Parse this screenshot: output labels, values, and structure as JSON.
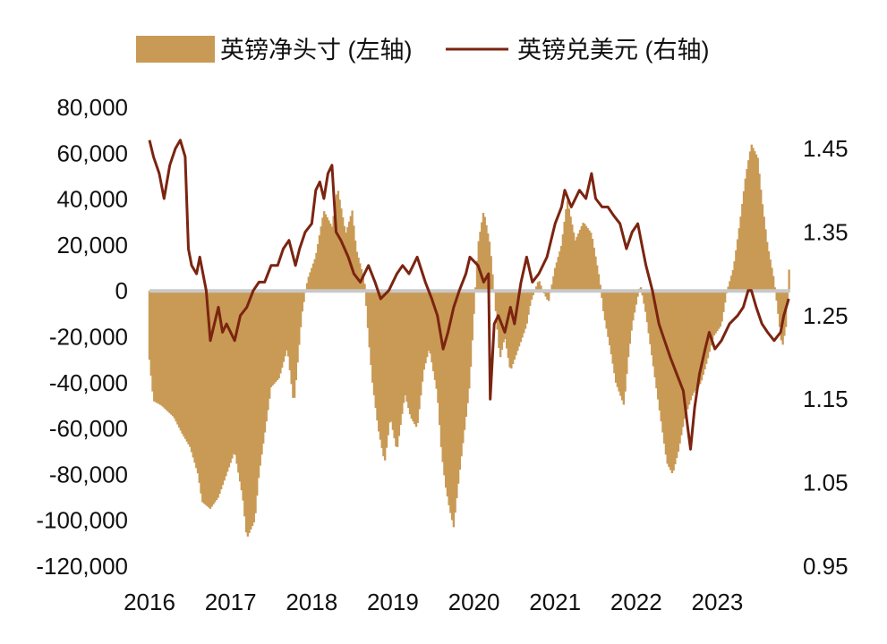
{
  "chart_data": {
    "type": "bar+line",
    "title": "",
    "legend": {
      "placement": "top",
      "items": [
        {
          "name": "英镑净头寸 (左轴)",
          "kind": "bar"
        },
        {
          "name": "英镑兑美元 (右轴)",
          "kind": "line"
        }
      ]
    },
    "x_ticks": [
      "2016",
      "2017",
      "2018",
      "2019",
      "2020",
      "2021",
      "2022",
      "2023"
    ],
    "x_range": [
      2016,
      2023.9
    ],
    "y_left": {
      "range": [
        -120000,
        80000
      ],
      "ticks": [
        80000,
        60000,
        40000,
        20000,
        0,
        -20000,
        -40000,
        -60000,
        -80000,
        -100000,
        -120000
      ],
      "tick_labels": [
        "80,000",
        "60,000",
        "40,000",
        "20,000",
        "0",
        "-20,000",
        "-40,000",
        "-60,000",
        "-80,000",
        "-100,000",
        "-120,000"
      ]
    },
    "y_right": {
      "range": [
        0.95,
        1.45
      ],
      "ticks": [
        1.45,
        1.35,
        1.25,
        1.15,
        1.05,
        0.95
      ],
      "tick_labels": [
        "1.45",
        "1.35",
        "1.25",
        "1.15",
        "1.05",
        "0.95"
      ]
    },
    "colors": {
      "bar": "#c99a55",
      "line": "#7b2410",
      "zero_line": "#c8c8c8"
    },
    "series": [
      {
        "name": "英镑净头寸 (左轴)",
        "axis": "left",
        "points": [
          [
            2016.0,
            -30000
          ],
          [
            2016.05,
            -48000
          ],
          [
            2016.15,
            -50000
          ],
          [
            2016.3,
            -55000
          ],
          [
            2016.4,
            -62000
          ],
          [
            2016.5,
            -68000
          ],
          [
            2016.6,
            -80000
          ],
          [
            2016.65,
            -92000
          ],
          [
            2016.75,
            -95000
          ],
          [
            2016.85,
            -90000
          ],
          [
            2016.95,
            -80000
          ],
          [
            2017.05,
            -70000
          ],
          [
            2017.15,
            -90000
          ],
          [
            2017.2,
            -108000
          ],
          [
            2017.3,
            -100000
          ],
          [
            2017.35,
            -80000
          ],
          [
            2017.45,
            -55000
          ],
          [
            2017.5,
            -42000
          ],
          [
            2017.6,
            -38000
          ],
          [
            2017.7,
            -25000
          ],
          [
            2017.78,
            -50000
          ],
          [
            2017.88,
            -10000
          ],
          [
            2017.95,
            5000
          ],
          [
            2018.05,
            15000
          ],
          [
            2018.15,
            35000
          ],
          [
            2018.25,
            28000
          ],
          [
            2018.32,
            45000
          ],
          [
            2018.42,
            25000
          ],
          [
            2018.5,
            35000
          ],
          [
            2018.55,
            18000
          ],
          [
            2018.65,
            5000
          ],
          [
            2018.7,
            -20000
          ],
          [
            2018.75,
            -40000
          ],
          [
            2018.82,
            -60000
          ],
          [
            2018.9,
            -75000
          ],
          [
            2018.97,
            -55000
          ],
          [
            2019.05,
            -70000
          ],
          [
            2019.15,
            -45000
          ],
          [
            2019.22,
            -55000
          ],
          [
            2019.3,
            -60000
          ],
          [
            2019.38,
            -35000
          ],
          [
            2019.45,
            -25000
          ],
          [
            2019.55,
            -45000
          ],
          [
            2019.6,
            -70000
          ],
          [
            2019.65,
            -85000
          ],
          [
            2019.7,
            -95000
          ],
          [
            2019.75,
            -103000
          ],
          [
            2019.82,
            -80000
          ],
          [
            2019.92,
            -50000
          ],
          [
            2019.95,
            -40000
          ],
          [
            2020.05,
            20000
          ],
          [
            2020.12,
            35000
          ],
          [
            2020.2,
            20000
          ],
          [
            2020.26,
            -5000
          ],
          [
            2020.32,
            -30000
          ],
          [
            2020.38,
            -20000
          ],
          [
            2020.45,
            -35000
          ],
          [
            2020.55,
            -25000
          ],
          [
            2020.65,
            -15000
          ],
          [
            2020.7,
            -5000
          ],
          [
            2020.8,
            5000
          ],
          [
            2020.85,
            0
          ],
          [
            2020.92,
            -5000
          ],
          [
            2021.0,
            10000
          ],
          [
            2021.08,
            20000
          ],
          [
            2021.15,
            40000
          ],
          [
            2021.25,
            22000
          ],
          [
            2021.35,
            30000
          ],
          [
            2021.45,
            25000
          ],
          [
            2021.55,
            5000
          ],
          [
            2021.6,
            -10000
          ],
          [
            2021.68,
            -25000
          ],
          [
            2021.75,
            -40000
          ],
          [
            2021.85,
            -50000
          ],
          [
            2021.9,
            -30000
          ],
          [
            2021.95,
            -15000
          ],
          [
            2022.05,
            3000
          ],
          [
            2022.12,
            -10000
          ],
          [
            2022.2,
            -30000
          ],
          [
            2022.26,
            -45000
          ],
          [
            2022.32,
            -60000
          ],
          [
            2022.38,
            -75000
          ],
          [
            2022.45,
            -80000
          ],
          [
            2022.52,
            -70000
          ],
          [
            2022.6,
            -55000
          ],
          [
            2022.7,
            -45000
          ],
          [
            2022.8,
            -40000
          ],
          [
            2022.88,
            -30000
          ],
          [
            2022.95,
            -20000
          ],
          [
            2023.05,
            -15000
          ],
          [
            2023.12,
            0
          ],
          [
            2023.2,
            10000
          ],
          [
            2023.28,
            30000
          ],
          [
            2023.35,
            50000
          ],
          [
            2023.42,
            64000
          ],
          [
            2023.5,
            58000
          ],
          [
            2023.55,
            40000
          ],
          [
            2023.62,
            20000
          ],
          [
            2023.7,
            5000
          ],
          [
            2023.75,
            -10000
          ],
          [
            2023.8,
            -25000
          ],
          [
            2023.85,
            -15000
          ],
          [
            2023.9,
            20000
          ]
        ]
      },
      {
        "name": "英镑兑美元 (右轴)",
        "axis": "right",
        "points": [
          [
            2016.0,
            1.46
          ],
          [
            2016.05,
            1.44
          ],
          [
            2016.12,
            1.42
          ],
          [
            2016.18,
            1.39
          ],
          [
            2016.25,
            1.43
          ],
          [
            2016.32,
            1.45
          ],
          [
            2016.38,
            1.46
          ],
          [
            2016.44,
            1.44
          ],
          [
            2016.48,
            1.33
          ],
          [
            2016.52,
            1.31
          ],
          [
            2016.58,
            1.3
          ],
          [
            2016.62,
            1.32
          ],
          [
            2016.7,
            1.28
          ],
          [
            2016.75,
            1.22
          ],
          [
            2016.8,
            1.24
          ],
          [
            2016.85,
            1.26
          ],
          [
            2016.9,
            1.23
          ],
          [
            2016.95,
            1.24
          ],
          [
            2017.05,
            1.22
          ],
          [
            2017.12,
            1.25
          ],
          [
            2017.2,
            1.26
          ],
          [
            2017.28,
            1.28
          ],
          [
            2017.35,
            1.29
          ],
          [
            2017.42,
            1.29
          ],
          [
            2017.5,
            1.31
          ],
          [
            2017.58,
            1.31
          ],
          [
            2017.65,
            1.33
          ],
          [
            2017.72,
            1.34
          ],
          [
            2017.8,
            1.31
          ],
          [
            2017.85,
            1.33
          ],
          [
            2017.92,
            1.35
          ],
          [
            2018.0,
            1.36
          ],
          [
            2018.05,
            1.4
          ],
          [
            2018.1,
            1.41
          ],
          [
            2018.15,
            1.39
          ],
          [
            2018.2,
            1.42
          ],
          [
            2018.25,
            1.43
          ],
          [
            2018.3,
            1.35
          ],
          [
            2018.36,
            1.34
          ],
          [
            2018.45,
            1.32
          ],
          [
            2018.52,
            1.3
          ],
          [
            2018.6,
            1.29
          ],
          [
            2018.7,
            1.31
          ],
          [
            2018.78,
            1.29
          ],
          [
            2018.85,
            1.27
          ],
          [
            2018.95,
            1.28
          ],
          [
            2019.05,
            1.3
          ],
          [
            2019.12,
            1.31
          ],
          [
            2019.2,
            1.3
          ],
          [
            2019.3,
            1.32
          ],
          [
            2019.4,
            1.29
          ],
          [
            2019.48,
            1.27
          ],
          [
            2019.55,
            1.25
          ],
          [
            2019.62,
            1.21
          ],
          [
            2019.68,
            1.23
          ],
          [
            2019.75,
            1.26
          ],
          [
            2019.82,
            1.28
          ],
          [
            2019.9,
            1.3
          ],
          [
            2019.95,
            1.32
          ],
          [
            2020.05,
            1.31
          ],
          [
            2020.12,
            1.29
          ],
          [
            2020.18,
            1.3
          ],
          [
            2020.2,
            1.15
          ],
          [
            2020.25,
            1.24
          ],
          [
            2020.3,
            1.25
          ],
          [
            2020.38,
            1.23
          ],
          [
            2020.45,
            1.26
          ],
          [
            2020.5,
            1.24
          ],
          [
            2020.58,
            1.29
          ],
          [
            2020.65,
            1.32
          ],
          [
            2020.72,
            1.29
          ],
          [
            2020.8,
            1.3
          ],
          [
            2020.9,
            1.32
          ],
          [
            2021.0,
            1.36
          ],
          [
            2021.08,
            1.38
          ],
          [
            2021.12,
            1.4
          ],
          [
            2021.2,
            1.38
          ],
          [
            2021.3,
            1.4
          ],
          [
            2021.38,
            1.39
          ],
          [
            2021.45,
            1.42
          ],
          [
            2021.5,
            1.39
          ],
          [
            2021.58,
            1.38
          ],
          [
            2021.65,
            1.38
          ],
          [
            2021.72,
            1.37
          ],
          [
            2021.8,
            1.36
          ],
          [
            2021.88,
            1.33
          ],
          [
            2021.95,
            1.35
          ],
          [
            2022.02,
            1.36
          ],
          [
            2022.08,
            1.33
          ],
          [
            2022.12,
            1.31
          ],
          [
            2022.2,
            1.28
          ],
          [
            2022.28,
            1.24
          ],
          [
            2022.35,
            1.22
          ],
          [
            2022.42,
            1.2
          ],
          [
            2022.5,
            1.18
          ],
          [
            2022.58,
            1.16
          ],
          [
            2022.63,
            1.12
          ],
          [
            2022.67,
            1.09
          ],
          [
            2022.72,
            1.14
          ],
          [
            2022.78,
            1.18
          ],
          [
            2022.85,
            1.21
          ],
          [
            2022.9,
            1.23
          ],
          [
            2022.97,
            1.21
          ],
          [
            2023.05,
            1.22
          ],
          [
            2023.15,
            1.24
          ],
          [
            2023.25,
            1.25
          ],
          [
            2023.32,
            1.26
          ],
          [
            2023.38,
            1.28
          ],
          [
            2023.42,
            1.28
          ],
          [
            2023.48,
            1.26
          ],
          [
            2023.55,
            1.24
          ],
          [
            2023.62,
            1.23
          ],
          [
            2023.7,
            1.22
          ],
          [
            2023.78,
            1.23
          ],
          [
            2023.82,
            1.25
          ],
          [
            2023.88,
            1.27
          ]
        ]
      }
    ]
  }
}
